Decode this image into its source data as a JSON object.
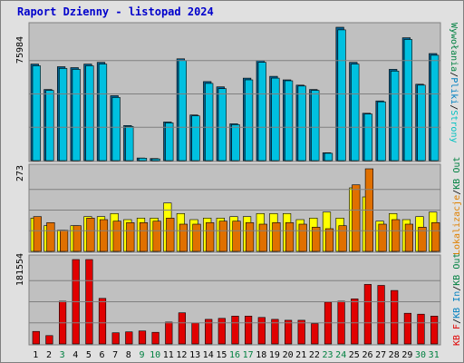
{
  "title": "Raport Dzienny -  listopad 2024",
  "colors": {
    "background": "#E0E0E0",
    "plot_bg": "#C0C0C0",
    "title": "#0000CC",
    "weekday": "#000000",
    "weekend": "#008040"
  },
  "chart_data": [
    {
      "panel": "top",
      "type": "bar",
      "ymax_label": "75984",
      "ylim": [
        0,
        75984
      ],
      "legend": [
        {
          "text": "Wywołania",
          "color": "#008040"
        },
        {
          "text": "/",
          "color": "#000000"
        },
        {
          "text": "Pliki",
          "color": "#0080C0"
        },
        {
          "text": "/",
          "color": "#000000"
        },
        {
          "text": "Strony",
          "color": "#00C0C0"
        }
      ],
      "series": [
        {
          "color": "#006090",
          "values": [
            55000,
            40500,
            53500,
            53000,
            55000,
            56000,
            37000,
            20000,
            1500,
            1200,
            22000,
            58000,
            26000,
            45000,
            42000,
            21000,
            47000,
            57000,
            48000,
            46000,
            43000,
            40500,
            4500,
            75984,
            56000,
            27000,
            34000,
            52000,
            70000,
            43500,
            61000
          ]
        },
        {
          "color": "#00C0E0",
          "values": [
            54000,
            40000,
            52500,
            52000,
            54000,
            55000,
            36000,
            19500,
            1400,
            1000,
            21500,
            57000,
            25500,
            44000,
            41000,
            20500,
            46000,
            56000,
            47000,
            45500,
            42500,
            40000,
            4200,
            74500,
            55000,
            26500,
            33500,
            51000,
            69000,
            43000,
            60000
          ]
        }
      ]
    },
    {
      "panel": "middle",
      "type": "bar",
      "ymax_label": "273",
      "ylim": [
        0,
        273
      ],
      "legend": [
        {
          "text": "Lokalizacje",
          "color": "#E08000"
        },
        {
          "text": "/",
          "color": "#000000"
        },
        {
          "text": "KB Out",
          "color": "#008040"
        }
      ],
      "series": [
        {
          "color": "#FFFF00",
          "values": [
            110,
            85,
            70,
            85,
            115,
            115,
            125,
            105,
            110,
            110,
            160,
            125,
            105,
            110,
            110,
            115,
            115,
            125,
            125,
            125,
            105,
            110,
            130,
            110,
            210,
            180,
            100,
            125,
            105,
            115,
            130
          ]
        },
        {
          "color": "#E07000",
          "values": [
            115,
            95,
            70,
            85,
            110,
            105,
            100,
            95,
            95,
            100,
            110,
            90,
            90,
            95,
            100,
            100,
            95,
            90,
            95,
            95,
            90,
            80,
            75,
            85,
            220,
            273,
            90,
            105,
            90,
            80,
            95
          ]
        }
      ]
    },
    {
      "panel": "bottom",
      "type": "bar",
      "ymax_label": "181554",
      "ylim": [
        0,
        181554
      ],
      "legend": [
        {
          "text": "KB F",
          "color": "#E00000"
        },
        {
          "text": "/",
          "color": "#000000"
        },
        {
          "text": "KB In",
          "color": "#0080C0"
        },
        {
          "text": "/",
          "color": "#000000"
        },
        {
          "text": "KB Out",
          "color": "#008040"
        }
      ],
      "series": [
        {
          "color": "#E00000",
          "values": [
            27000,
            18000,
            92000,
            181554,
            181554,
            98000,
            24000,
            26000,
            28000,
            25000,
            47000,
            67000,
            45000,
            53000,
            55000,
            60000,
            60000,
            57000,
            53000,
            51000,
            51000,
            44000,
            90000,
            92000,
            97000,
            128000,
            126000,
            115000,
            66000,
            64000,
            60000
          ]
        }
      ]
    }
  ],
  "x_labels": [
    "1",
    "2",
    "3",
    "4",
    "5",
    "6",
    "7",
    "8",
    "9",
    "10",
    "11",
    "12",
    "13",
    "14",
    "15",
    "16",
    "17",
    "18",
    "19",
    "20",
    "21",
    "22",
    "23",
    "24",
    "25",
    "26",
    "27",
    "28",
    "29",
    "30",
    "31"
  ],
  "weekend_days": [
    3,
    9,
    10,
    16,
    17,
    23,
    24,
    30,
    31
  ]
}
